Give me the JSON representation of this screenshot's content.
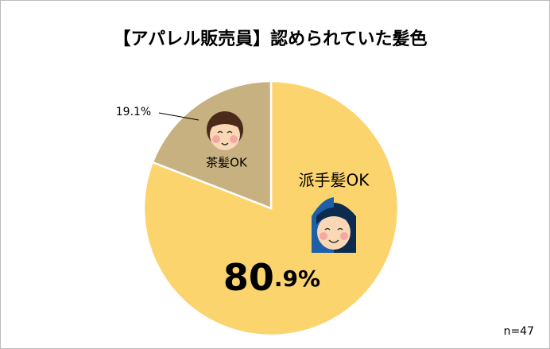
{
  "chart_data": {
    "type": "pie",
    "title": "【アパレル販売員】認められていた髪色",
    "categories": [
      "派手髪OK",
      "茶髪OK"
    ],
    "values": [
      80.9,
      19.1
    ],
    "value_labels": [
      "80.9%",
      "19.1%"
    ],
    "colors": [
      "#FCD46E",
      "#C8B180"
    ],
    "note": "n=47"
  }
}
